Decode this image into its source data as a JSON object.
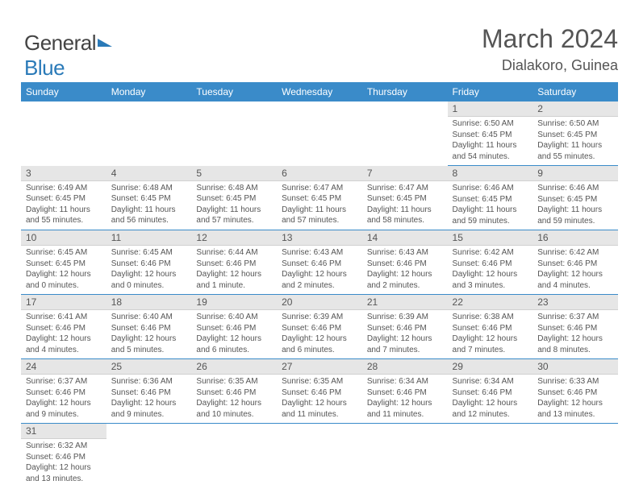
{
  "logo": {
    "word1": "Genera",
    "word1_last": "l",
    "word2": "Blue"
  },
  "title": "March 2024",
  "location": "Dialakoro, Guinea",
  "weekdays": [
    "Sunday",
    "Monday",
    "Tuesday",
    "Wednesday",
    "Thursday",
    "Friday",
    "Saturday"
  ],
  "colors": {
    "header_bg": "#3a8bc9",
    "header_fg": "#ffffff",
    "daynum_bg": "#e6e6e6",
    "row_border": "#3a8bc9",
    "text": "#555555",
    "logo_blue": "#2a7ab8"
  },
  "weeks": [
    [
      null,
      null,
      null,
      null,
      null,
      {
        "n": "1",
        "sr": "Sunrise: 6:50 AM",
        "ss": "Sunset: 6:45 PM",
        "d1": "Daylight: 11 hours",
        "d2": "and 54 minutes."
      },
      {
        "n": "2",
        "sr": "Sunrise: 6:50 AM",
        "ss": "Sunset: 6:45 PM",
        "d1": "Daylight: 11 hours",
        "d2": "and 55 minutes."
      }
    ],
    [
      {
        "n": "3",
        "sr": "Sunrise: 6:49 AM",
        "ss": "Sunset: 6:45 PM",
        "d1": "Daylight: 11 hours",
        "d2": "and 55 minutes."
      },
      {
        "n": "4",
        "sr": "Sunrise: 6:48 AM",
        "ss": "Sunset: 6:45 PM",
        "d1": "Daylight: 11 hours",
        "d2": "and 56 minutes."
      },
      {
        "n": "5",
        "sr": "Sunrise: 6:48 AM",
        "ss": "Sunset: 6:45 PM",
        "d1": "Daylight: 11 hours",
        "d2": "and 57 minutes."
      },
      {
        "n": "6",
        "sr": "Sunrise: 6:47 AM",
        "ss": "Sunset: 6:45 PM",
        "d1": "Daylight: 11 hours",
        "d2": "and 57 minutes."
      },
      {
        "n": "7",
        "sr": "Sunrise: 6:47 AM",
        "ss": "Sunset: 6:45 PM",
        "d1": "Daylight: 11 hours",
        "d2": "and 58 minutes."
      },
      {
        "n": "8",
        "sr": "Sunrise: 6:46 AM",
        "ss": "Sunset: 6:45 PM",
        "d1": "Daylight: 11 hours",
        "d2": "and 59 minutes."
      },
      {
        "n": "9",
        "sr": "Sunrise: 6:46 AM",
        "ss": "Sunset: 6:45 PM",
        "d1": "Daylight: 11 hours",
        "d2": "and 59 minutes."
      }
    ],
    [
      {
        "n": "10",
        "sr": "Sunrise: 6:45 AM",
        "ss": "Sunset: 6:45 PM",
        "d1": "Daylight: 12 hours",
        "d2": "and 0 minutes."
      },
      {
        "n": "11",
        "sr": "Sunrise: 6:45 AM",
        "ss": "Sunset: 6:46 PM",
        "d1": "Daylight: 12 hours",
        "d2": "and 0 minutes."
      },
      {
        "n": "12",
        "sr": "Sunrise: 6:44 AM",
        "ss": "Sunset: 6:46 PM",
        "d1": "Daylight: 12 hours",
        "d2": "and 1 minute."
      },
      {
        "n": "13",
        "sr": "Sunrise: 6:43 AM",
        "ss": "Sunset: 6:46 PM",
        "d1": "Daylight: 12 hours",
        "d2": "and 2 minutes."
      },
      {
        "n": "14",
        "sr": "Sunrise: 6:43 AM",
        "ss": "Sunset: 6:46 PM",
        "d1": "Daylight: 12 hours",
        "d2": "and 2 minutes."
      },
      {
        "n": "15",
        "sr": "Sunrise: 6:42 AM",
        "ss": "Sunset: 6:46 PM",
        "d1": "Daylight: 12 hours",
        "d2": "and 3 minutes."
      },
      {
        "n": "16",
        "sr": "Sunrise: 6:42 AM",
        "ss": "Sunset: 6:46 PM",
        "d1": "Daylight: 12 hours",
        "d2": "and 4 minutes."
      }
    ],
    [
      {
        "n": "17",
        "sr": "Sunrise: 6:41 AM",
        "ss": "Sunset: 6:46 PM",
        "d1": "Daylight: 12 hours",
        "d2": "and 4 minutes."
      },
      {
        "n": "18",
        "sr": "Sunrise: 6:40 AM",
        "ss": "Sunset: 6:46 PM",
        "d1": "Daylight: 12 hours",
        "d2": "and 5 minutes."
      },
      {
        "n": "19",
        "sr": "Sunrise: 6:40 AM",
        "ss": "Sunset: 6:46 PM",
        "d1": "Daylight: 12 hours",
        "d2": "and 6 minutes."
      },
      {
        "n": "20",
        "sr": "Sunrise: 6:39 AM",
        "ss": "Sunset: 6:46 PM",
        "d1": "Daylight: 12 hours",
        "d2": "and 6 minutes."
      },
      {
        "n": "21",
        "sr": "Sunrise: 6:39 AM",
        "ss": "Sunset: 6:46 PM",
        "d1": "Daylight: 12 hours",
        "d2": "and 7 minutes."
      },
      {
        "n": "22",
        "sr": "Sunrise: 6:38 AM",
        "ss": "Sunset: 6:46 PM",
        "d1": "Daylight: 12 hours",
        "d2": "and 7 minutes."
      },
      {
        "n": "23",
        "sr": "Sunrise: 6:37 AM",
        "ss": "Sunset: 6:46 PM",
        "d1": "Daylight: 12 hours",
        "d2": "and 8 minutes."
      }
    ],
    [
      {
        "n": "24",
        "sr": "Sunrise: 6:37 AM",
        "ss": "Sunset: 6:46 PM",
        "d1": "Daylight: 12 hours",
        "d2": "and 9 minutes."
      },
      {
        "n": "25",
        "sr": "Sunrise: 6:36 AM",
        "ss": "Sunset: 6:46 PM",
        "d1": "Daylight: 12 hours",
        "d2": "and 9 minutes."
      },
      {
        "n": "26",
        "sr": "Sunrise: 6:35 AM",
        "ss": "Sunset: 6:46 PM",
        "d1": "Daylight: 12 hours",
        "d2": "and 10 minutes."
      },
      {
        "n": "27",
        "sr": "Sunrise: 6:35 AM",
        "ss": "Sunset: 6:46 PM",
        "d1": "Daylight: 12 hours",
        "d2": "and 11 minutes."
      },
      {
        "n": "28",
        "sr": "Sunrise: 6:34 AM",
        "ss": "Sunset: 6:46 PM",
        "d1": "Daylight: 12 hours",
        "d2": "and 11 minutes."
      },
      {
        "n": "29",
        "sr": "Sunrise: 6:34 AM",
        "ss": "Sunset: 6:46 PM",
        "d1": "Daylight: 12 hours",
        "d2": "and 12 minutes."
      },
      {
        "n": "30",
        "sr": "Sunrise: 6:33 AM",
        "ss": "Sunset: 6:46 PM",
        "d1": "Daylight: 12 hours",
        "d2": "and 13 minutes."
      }
    ],
    [
      {
        "n": "31",
        "sr": "Sunrise: 6:32 AM",
        "ss": "Sunset: 6:46 PM",
        "d1": "Daylight: 12 hours",
        "d2": "and 13 minutes."
      },
      null,
      null,
      null,
      null,
      null,
      null
    ]
  ]
}
